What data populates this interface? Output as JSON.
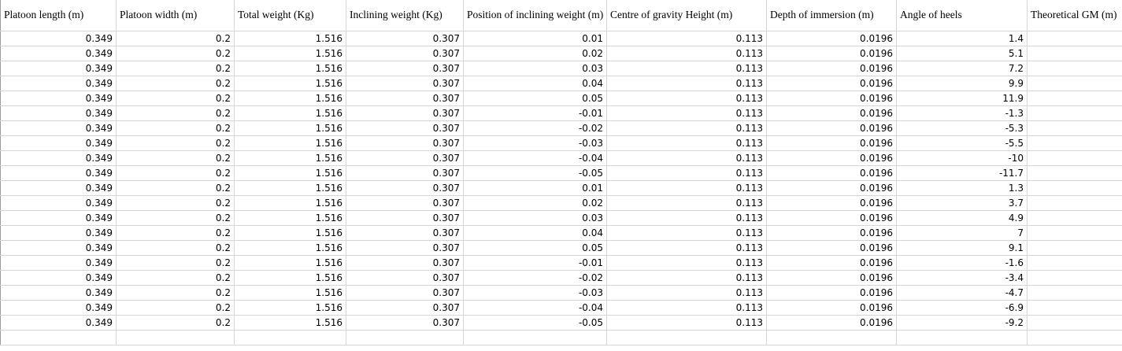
{
  "table": {
    "columns": [
      "Platoon length (m)",
      "Platoon width (m)",
      "Total weight (Kg)",
      "Inclining weight (Kg)",
      "Position of inclining weight (m)",
      "Centre of gravity Height (m)",
      "Depth of immersion (m)",
      "Angle of heels",
      "Theoretical GM (m)"
    ],
    "rows": [
      [
        "0.349",
        "0.2",
        "1.516",
        "0.307",
        "0.01",
        "0.113",
        "0.0196",
        "1.4",
        ""
      ],
      [
        "0.349",
        "0.2",
        "1.516",
        "0.307",
        "0.02",
        "0.113",
        "0.0196",
        "5.1",
        ""
      ],
      [
        "0.349",
        "0.2",
        "1.516",
        "0.307",
        "0.03",
        "0.113",
        "0.0196",
        "7.2",
        ""
      ],
      [
        "0.349",
        "0.2",
        "1.516",
        "0.307",
        "0.04",
        "0.113",
        "0.0196",
        "9.9",
        ""
      ],
      [
        "0.349",
        "0.2",
        "1.516",
        "0.307",
        "0.05",
        "0.113",
        "0.0196",
        "11.9",
        ""
      ],
      [
        "0.349",
        "0.2",
        "1.516",
        "0.307",
        "-0.01",
        "0.113",
        "0.0196",
        "-1.3",
        ""
      ],
      [
        "0.349",
        "0.2",
        "1.516",
        "0.307",
        "-0.02",
        "0.113",
        "0.0196",
        "-5.3",
        ""
      ],
      [
        "0.349",
        "0.2",
        "1.516",
        "0.307",
        "-0.03",
        "0.113",
        "0.0196",
        "-5.5",
        ""
      ],
      [
        "0.349",
        "0.2",
        "1.516",
        "0.307",
        "-0.04",
        "0.113",
        "0.0196",
        "-10",
        ""
      ],
      [
        "0.349",
        "0.2",
        "1.516",
        "0.307",
        "-0.05",
        "0.113",
        "0.0196",
        "-11.7",
        ""
      ],
      [
        "0.349",
        "0.2",
        "1.516",
        "0.307",
        "0.01",
        "0.113",
        "0.0196",
        "1.3",
        ""
      ],
      [
        "0.349",
        "0.2",
        "1.516",
        "0.307",
        "0.02",
        "0.113",
        "0.0196",
        "3.7",
        ""
      ],
      [
        "0.349",
        "0.2",
        "1.516",
        "0.307",
        "0.03",
        "0.113",
        "0.0196",
        "4.9",
        ""
      ],
      [
        "0.349",
        "0.2",
        "1.516",
        "0.307",
        "0.04",
        "0.113",
        "0.0196",
        "7",
        ""
      ],
      [
        "0.349",
        "0.2",
        "1.516",
        "0.307",
        "0.05",
        "0.113",
        "0.0196",
        "9.1",
        ""
      ],
      [
        "0.349",
        "0.2",
        "1.516",
        "0.307",
        "-0.01",
        "0.113",
        "0.0196",
        "-1.6",
        ""
      ],
      [
        "0.349",
        "0.2",
        "1.516",
        "0.307",
        "-0.02",
        "0.113",
        "0.0196",
        "-3.4",
        ""
      ],
      [
        "0.349",
        "0.2",
        "1.516",
        "0.307",
        "-0.03",
        "0.113",
        "0.0196",
        "-4.7",
        ""
      ],
      [
        "0.349",
        "0.2",
        "1.516",
        "0.307",
        "-0.04",
        "0.113",
        "0.0196",
        "-6.9",
        ""
      ],
      [
        "0.349",
        "0.2",
        "1.516",
        "0.307",
        "-0.05",
        "0.113",
        "0.0196",
        "-9.2",
        ""
      ]
    ]
  },
  "colors": {
    "background": "#ffffff",
    "text": "#000000",
    "gridline": "#d6d6d6",
    "sheet_edge": "#9c9c9c"
  }
}
